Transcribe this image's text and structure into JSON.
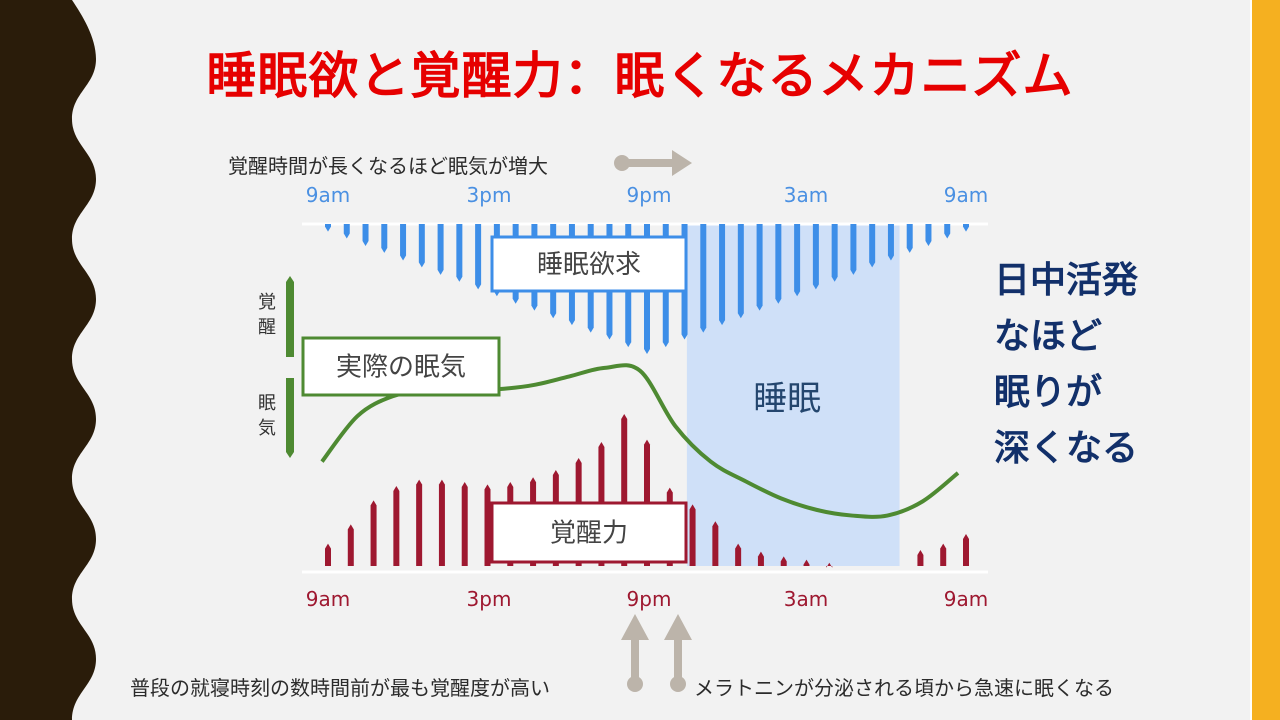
{
  "slide": {
    "title": "睡眠欲と覚醒力：眠くなるメカニズム",
    "caption_top": "覚醒時間が長くなるほど眠気が増大",
    "caption_bottom_left": "普段の就寝時刻の数時間前が最も覚醒度が高い",
    "caption_bottom_right": "メラトニンが分泌される頃から急速に眠くなる",
    "side_text": [
      "日中活発",
      "なほど",
      "眠りが",
      "深くなる"
    ],
    "colors": {
      "title": "#e60000",
      "left_border": "#2a1c0a",
      "right_border": "#f5b020",
      "sleep_drive": "#3d8ee8",
      "wake_drive": "#9e1830",
      "sleepiness": "#4e8a32",
      "sleep_zone": "#cfe0f8",
      "side_text": "#12306a"
    }
  },
  "chart_data": {
    "type": "bar",
    "x_ticks": [
      "9am",
      "3pm",
      "9pm",
      "3am",
      "9am"
    ],
    "series_labels": {
      "sleep_drive": "睡眠欲求",
      "wake_drive": "覚醒力",
      "sleepiness": "実際の眠気"
    },
    "sleep_zone_label": "睡眠",
    "axis_labels": {
      "awake": "覚醒",
      "sleepy": "眠気"
    },
    "sleep_drive": [
      0.1,
      0.19,
      0.29,
      0.38,
      0.48,
      0.57,
      0.67,
      0.76,
      0.86,
      0.95,
      1.05,
      1.14,
      1.24,
      1.33,
      1.43,
      1.52,
      1.62,
      1.71,
      1.62,
      1.52,
      1.43,
      1.33,
      1.24,
      1.14,
      1.05,
      0.95,
      0.86,
      0.76,
      0.67,
      0.57,
      0.48,
      0.38,
      0.29,
      0.19,
      0.1
    ],
    "wake_drive": [
      0.28,
      0.52,
      0.82,
      1.0,
      1.08,
      1.08,
      1.05,
      1.02,
      1.05,
      1.11,
      1.2,
      1.35,
      1.55,
      1.9,
      1.58,
      0.98,
      0.77,
      0.56,
      0.28,
      0.18,
      0.12,
      0.08,
      0.04,
      0.02,
      0.02,
      0.02,
      0.2,
      0.28,
      0.4
    ],
    "sleepiness": [
      0.2,
      0.52,
      0.66,
      0.7,
      0.7,
      0.71,
      0.74,
      0.8,
      0.86,
      0.84,
      0.45,
      0.2,
      0.06,
      -0.06,
      -0.14,
      -0.18,
      -0.18,
      -0.08,
      0.12
    ],
    "sleep_zone": {
      "start": "10:30pm",
      "end": "6:30am"
    }
  }
}
